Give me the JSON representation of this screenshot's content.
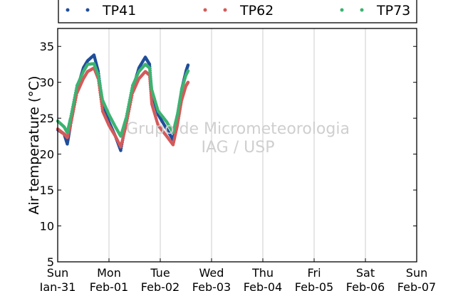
{
  "chart_data": {
    "type": "scatter",
    "title": "",
    "xlabel": "",
    "ylabel": "Air temperature (°C)",
    "ylim": [
      5,
      37.5
    ],
    "yticks": [
      5,
      10,
      15,
      20,
      25,
      30,
      35
    ],
    "xlim": [
      "2016-01-31T00:00",
      "2016-02-07T00:00"
    ],
    "xticks": [
      {
        "day": "Sun",
        "date": "Jan-31"
      },
      {
        "day": "Mon",
        "date": "Feb-01"
      },
      {
        "day": "Tue",
        "date": "Feb-02"
      },
      {
        "day": "Wed",
        "date": "Feb-03"
      },
      {
        "day": "Thu",
        "date": "Feb-04"
      },
      {
        "day": "Fri",
        "date": "Feb-05"
      },
      {
        "day": "Sat",
        "date": "Feb-06"
      },
      {
        "day": "Sun",
        "date": "Feb-07"
      }
    ],
    "grid": "vertical",
    "legend_position": "top",
    "watermark": [
      "Grupo de Micrometeorologia",
      "IAG / USP"
    ],
    "series": [
      {
        "name": "TP41",
        "color": "#1f4e9a",
        "points": [
          [
            "2016-01-31T00:00",
            23.4
          ],
          [
            "2016-01-31T03:00",
            22.8
          ],
          [
            "2016-01-31T04:30",
            21.4
          ],
          [
            "2016-01-31T06:00",
            24.0
          ],
          [
            "2016-01-31T09:00",
            29.0
          ],
          [
            "2016-01-31T12:00",
            32.0
          ],
          [
            "2016-01-31T14:00",
            33.0
          ],
          [
            "2016-01-31T17:00",
            33.8
          ],
          [
            "2016-01-31T19:00",
            31.5
          ],
          [
            "2016-01-31T21:00",
            27.0
          ],
          [
            "2016-02-01T00:00",
            24.5
          ],
          [
            "2016-02-01T03:00",
            22.5
          ],
          [
            "2016-02-01T05:30",
            20.5
          ],
          [
            "2016-02-01T08:00",
            24.5
          ],
          [
            "2016-02-01T11:00",
            29.0
          ],
          [
            "2016-02-01T14:00",
            32.0
          ],
          [
            "2016-02-01T17:00",
            33.5
          ],
          [
            "2016-02-01T19:00",
            32.5
          ],
          [
            "2016-02-01T20:00",
            28.5
          ],
          [
            "2016-02-01T23:00",
            25.5
          ],
          [
            "2016-02-02T03:00",
            23.5
          ],
          [
            "2016-02-02T06:00",
            22.0
          ],
          [
            "2016-02-02T08:00",
            25.0
          ],
          [
            "2016-02-02T10:00",
            29.0
          ],
          [
            "2016-02-02T12:00",
            31.5
          ],
          [
            "2016-02-02T13:00",
            32.4
          ]
        ]
      },
      {
        "name": "TP62",
        "color": "#d45a5a",
        "points": [
          [
            "2016-01-31T00:00",
            23.5
          ],
          [
            "2016-01-31T03:00",
            22.8
          ],
          [
            "2016-01-31T04:30",
            22.3
          ],
          [
            "2016-01-31T06:00",
            24.0
          ],
          [
            "2016-01-31T09:00",
            28.5
          ],
          [
            "2016-01-31T12:00",
            30.5
          ],
          [
            "2016-01-31T14:00",
            31.5
          ],
          [
            "2016-01-31T17:00",
            32.0
          ],
          [
            "2016-01-31T19:00",
            30.5
          ],
          [
            "2016-01-31T21:00",
            26.0
          ],
          [
            "2016-02-01T00:00",
            24.0
          ],
          [
            "2016-02-01T03:00",
            22.5
          ],
          [
            "2016-02-01T05:30",
            21.0
          ],
          [
            "2016-02-01T08:00",
            24.0
          ],
          [
            "2016-02-01T11:00",
            28.5
          ],
          [
            "2016-02-01T14:00",
            30.5
          ],
          [
            "2016-02-01T17:00",
            31.5
          ],
          [
            "2016-02-01T19:00",
            31.0
          ],
          [
            "2016-02-01T20:00",
            27.0
          ],
          [
            "2016-02-01T23:00",
            24.0
          ],
          [
            "2016-02-02T03:00",
            22.5
          ],
          [
            "2016-02-02T06:00",
            21.3
          ],
          [
            "2016-02-02T08:00",
            24.0
          ],
          [
            "2016-02-02T10:00",
            27.5
          ],
          [
            "2016-02-02T12:00",
            29.5
          ],
          [
            "2016-02-02T13:00",
            30.0
          ]
        ]
      },
      {
        "name": "TP73",
        "color": "#3cb371",
        "points": [
          [
            "2016-01-31T00:00",
            24.6
          ],
          [
            "2016-01-31T03:00",
            23.8
          ],
          [
            "2016-01-31T04:30",
            23.0
          ],
          [
            "2016-01-31T06:00",
            25.0
          ],
          [
            "2016-01-31T09:00",
            29.5
          ],
          [
            "2016-01-31T12:00",
            31.5
          ],
          [
            "2016-01-31T14:00",
            32.5
          ],
          [
            "2016-01-31T17:00",
            32.6
          ],
          [
            "2016-01-31T19:00",
            31.0
          ],
          [
            "2016-01-31T21:00",
            27.5
          ],
          [
            "2016-02-01T00:00",
            25.5
          ],
          [
            "2016-02-01T03:00",
            23.8
          ],
          [
            "2016-02-01T05:30",
            22.5
          ],
          [
            "2016-02-01T08:00",
            25.0
          ],
          [
            "2016-02-01T11:00",
            29.5
          ],
          [
            "2016-02-01T14:00",
            31.5
          ],
          [
            "2016-02-01T17:00",
            32.5
          ],
          [
            "2016-02-01T19:00",
            32.0
          ],
          [
            "2016-02-01T20:00",
            29.0
          ],
          [
            "2016-02-01T23:00",
            26.0
          ],
          [
            "2016-02-02T03:00",
            24.5
          ],
          [
            "2016-02-02T06:00",
            23.0
          ],
          [
            "2016-02-02T08:00",
            25.5
          ],
          [
            "2016-02-02T10:00",
            29.0
          ],
          [
            "2016-02-02T12:00",
            31.0
          ],
          [
            "2016-02-02T13:00",
            31.6
          ]
        ]
      }
    ]
  }
}
